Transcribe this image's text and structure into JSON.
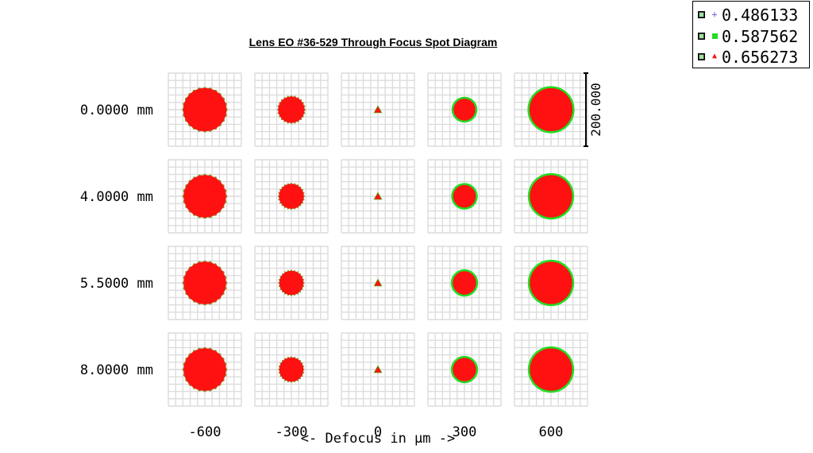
{
  "chart_data": {
    "type": "scatter",
    "title": "Lens EO #36-529 Through Focus Spot Diagram",
    "xlabel": "<- Defocus in µm ->",
    "field_labels": [
      "0.0000 mm",
      "4.0000 mm",
      "5.5000 mm",
      "8.0000 mm"
    ],
    "defocus_labels": [
      "-600",
      "-300",
      "0",
      "300",
      "600"
    ],
    "defocus_values": [
      -600,
      -300,
      0,
      300,
      600
    ],
    "scale_bar_label": "200.000",
    "scale_bar_value": 200,
    "box_extent": 200,
    "grid": true,
    "legend_position": "top-right",
    "series": [
      {
        "name": "0.486133",
        "marker": "plus",
        "color": "#6a6ad8"
      },
      {
        "name": "0.587562",
        "marker": "square",
        "color": "#22dd22"
      },
      {
        "name": "0.656273",
        "marker": "triangle",
        "color": "#ff1111"
      }
    ],
    "spot_diameters_um": [
      [
        118,
        72,
        14,
        60,
        118
      ],
      [
        116,
        68,
        14,
        62,
        116
      ],
      [
        116,
        66,
        14,
        64,
        116
      ],
      [
        116,
        66,
        14,
        64,
        116
      ]
    ]
  }
}
